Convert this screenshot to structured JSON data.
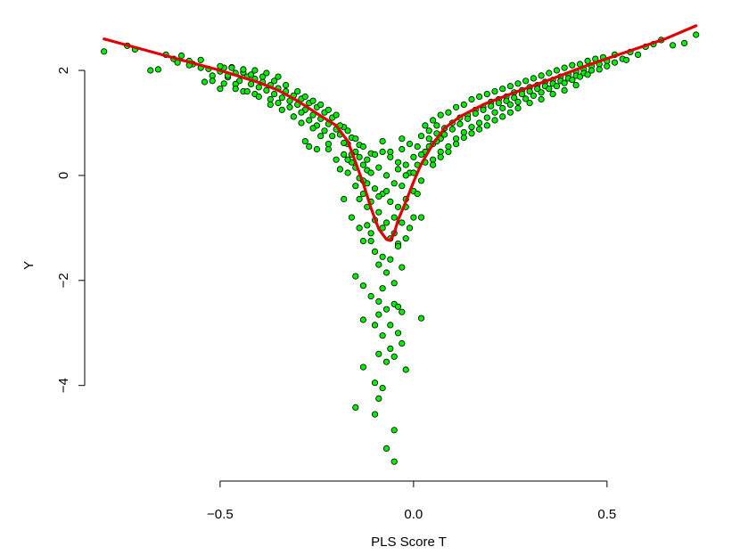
{
  "chart_data": {
    "type": "scatter",
    "xlabel": "PLS Score T",
    "ylabel": "Y",
    "xlim": [
      -0.82,
      0.74
    ],
    "ylim": [
      -5.6,
      2.9
    ],
    "x_ticks": [
      -0.5,
      0.0,
      0.5
    ],
    "x_tick_labels": [
      "−0.5",
      "0.0",
      "0.5"
    ],
    "y_ticks": [
      -4,
      -2,
      0,
      2
    ],
    "y_tick_labels": [
      "−4",
      "−2",
      "0",
      "2"
    ],
    "grid": false,
    "colors": {
      "points": "#00ee00",
      "point_border": "#000000",
      "fit": "#e00000"
    },
    "points": [
      [
        -0.8,
        2.36
      ],
      [
        -0.74,
        2.47
      ],
      [
        -0.72,
        2.4
      ],
      [
        -0.64,
        2.3
      ],
      [
        -0.62,
        2.22
      ],
      [
        -0.6,
        2.28
      ],
      [
        -0.58,
        2.18
      ],
      [
        -0.57,
        2.12
      ],
      [
        -0.55,
        2.2
      ],
      [
        -0.53,
        2.03
      ],
      [
        -0.5,
        1.98
      ],
      [
        -0.49,
        2.05
      ],
      [
        -0.48,
        1.87
      ],
      [
        -0.47,
        2.06
      ],
      [
        -0.46,
        1.95
      ],
      [
        -0.45,
        1.8
      ],
      [
        -0.44,
        1.96
      ],
      [
        -0.43,
        1.88
      ],
      [
        -0.42,
        1.74
      ],
      [
        -0.41,
        1.84
      ],
      [
        -0.4,
        1.68
      ],
      [
        -0.39,
        1.78
      ],
      [
        -0.38,
        1.62
      ],
      [
        -0.37,
        1.72
      ],
      [
        -0.36,
        1.55
      ],
      [
        -0.35,
        1.66
      ],
      [
        -0.34,
        1.48
      ],
      [
        -0.33,
        1.6
      ],
      [
        -0.32,
        1.42
      ],
      [
        -0.31,
        1.52
      ],
      [
        -0.3,
        1.35
      ],
      [
        -0.29,
        1.46
      ],
      [
        -0.28,
        1.25
      ],
      [
        -0.27,
        1.38
      ],
      [
        -0.26,
        1.15
      ],
      [
        -0.25,
        1.3
      ],
      [
        -0.24,
        1.08
      ],
      [
        -0.23,
        1.2
      ],
      [
        -0.22,
        0.98
      ],
      [
        -0.21,
        1.1
      ],
      [
        -0.2,
        0.88
      ],
      [
        -0.19,
        0.78
      ],
      [
        -0.18,
        0.92
      ],
      [
        -0.17,
        0.6
      ],
      [
        -0.16,
        0.72
      ],
      [
        -0.15,
        0.45
      ],
      [
        -0.14,
        0.58
      ],
      [
        -0.13,
        0.2
      ],
      [
        -0.5,
        1.65
      ],
      [
        -0.48,
        1.9
      ],
      [
        -0.46,
        1.74
      ],
      [
        -0.44,
        1.6
      ],
      [
        -0.42,
        1.92
      ],
      [
        -0.41,
        1.55
      ],
      [
        -0.39,
        1.88
      ],
      [
        -0.37,
        1.45
      ],
      [
        -0.36,
        1.8
      ],
      [
        -0.35,
        1.38
      ],
      [
        -0.33,
        1.72
      ],
      [
        -0.32,
        1.3
      ],
      [
        -0.3,
        1.6
      ],
      [
        -0.29,
        1.2
      ],
      [
        -0.28,
        1.5
      ],
      [
        -0.27,
        1.05
      ],
      [
        -0.26,
        1.42
      ],
      [
        -0.25,
        0.95
      ],
      [
        -0.24,
        1.35
      ],
      [
        -0.23,
        0.85
      ],
      [
        -0.22,
        1.25
      ],
      [
        -0.21,
        0.75
      ],
      [
        -0.2,
        1.15
      ],
      [
        -0.19,
        0.95
      ],
      [
        -0.18,
        0.62
      ],
      [
        -0.17,
        0.85
      ],
      [
        -0.16,
        0.4
      ],
      [
        -0.15,
        0.7
      ],
      [
        -0.14,
        0.35
      ],
      [
        -0.13,
        0.55
      ],
      [
        -0.12,
        0.1
      ],
      [
        -0.11,
        0.42
      ],
      [
        -0.28,
        0.65
      ],
      [
        -0.27,
        0.55
      ],
      [
        -0.25,
        0.5
      ],
      [
        -0.22,
        0.6
      ],
      [
        -0.2,
        0.3
      ],
      [
        -0.19,
        0.12
      ],
      [
        -0.18,
        0.4
      ],
      [
        -0.17,
        0.05
      ],
      [
        -0.16,
        0.25
      ],
      [
        -0.15,
        -0.2
      ],
      [
        -0.14,
        -0.05
      ],
      [
        -0.13,
        -0.35
      ],
      [
        -0.12,
        -0.15
      ],
      [
        -0.11,
        -0.5
      ],
      [
        -0.1,
        -0.25
      ],
      [
        -0.09,
        -0.7
      ],
      [
        -0.08,
        -0.35
      ],
      [
        -0.07,
        -0.9
      ],
      [
        -0.06,
        -0.5
      ],
      [
        -0.05,
        -1.1
      ],
      [
        -0.04,
        -0.6
      ],
      [
        -0.03,
        -0.2
      ],
      [
        -0.02,
        -0.45
      ],
      [
        -0.01,
        0.05
      ],
      [
        0.0,
        -0.3
      ],
      [
        0.01,
        0.2
      ],
      [
        0.02,
        -0.1
      ],
      [
        -0.12,
        0.3
      ],
      [
        -0.11,
        0.05
      ],
      [
        -0.1,
        0.4
      ],
      [
        -0.09,
        0.15
      ],
      [
        -0.08,
        0.45
      ],
      [
        -0.07,
        0.0
      ],
      [
        -0.06,
        0.35
      ],
      [
        -0.05,
        -0.15
      ],
      [
        -0.04,
        0.25
      ],
      [
        -0.03,
        0.5
      ],
      [
        -0.02,
        0.2
      ],
      [
        -0.01,
        0.6
      ],
      [
        0.0,
        0.35
      ],
      [
        0.01,
        0.55
      ],
      [
        0.02,
        0.75
      ],
      [
        0.03,
        0.45
      ],
      [
        0.04,
        0.85
      ],
      [
        0.05,
        0.6
      ],
      [
        0.06,
        0.95
      ],
      [
        0.07,
        0.7
      ],
      [
        -0.09,
        -0.4
      ],
      [
        -0.08,
        -1.0
      ],
      [
        -0.07,
        -0.3
      ],
      [
        -0.06,
        -1.2
      ],
      [
        -0.05,
        -0.8
      ],
      [
        -0.04,
        -1.3
      ],
      [
        -0.03,
        -0.9
      ],
      [
        -0.02,
        -0.6
      ],
      [
        -0.1,
        -0.85
      ],
      [
        -0.11,
        -1.1
      ],
      [
        -0.12,
        -0.6
      ],
      [
        -0.14,
        -0.45
      ],
      [
        -0.13,
        -1.25
      ],
      [
        -0.1,
        -1.45
      ],
      [
        -0.09,
        -1.7
      ],
      [
        -0.08,
        -1.55
      ],
      [
        -0.07,
        -1.85
      ],
      [
        -0.06,
        -1.6
      ],
      [
        -0.05,
        -2.05
      ],
      [
        -0.04,
        -1.35
      ],
      [
        -0.03,
        -1.75
      ],
      [
        -0.02,
        -1.2
      ],
      [
        -0.01,
        -1.0
      ],
      [
        0.0,
        -0.8
      ],
      [
        0.02,
        -0.8
      ],
      [
        -0.15,
        -1.92
      ],
      [
        -0.13,
        -2.1
      ],
      [
        -0.11,
        -2.3
      ],
      [
        -0.09,
        -2.4
      ],
      [
        -0.08,
        -2.15
      ],
      [
        -0.07,
        -2.55
      ],
      [
        -0.06,
        -2.85
      ],
      [
        -0.05,
        -2.45
      ],
      [
        -0.04,
        -2.5
      ],
      [
        -0.03,
        -2.6
      ],
      [
        0.02,
        -2.72
      ],
      [
        -0.13,
        -2.75
      ],
      [
        -0.09,
        -2.65
      ],
      [
        -0.1,
        -2.85
      ],
      [
        -0.08,
        -3.05
      ],
      [
        -0.06,
        -3.3
      ],
      [
        -0.04,
        -3.0
      ],
      [
        -0.03,
        -3.2
      ],
      [
        -0.09,
        -3.4
      ],
      [
        -0.07,
        -3.55
      ],
      [
        -0.05,
        -3.45
      ],
      [
        -0.13,
        -3.65
      ],
      [
        -0.02,
        -3.7
      ],
      [
        -0.1,
        -3.95
      ],
      [
        -0.08,
        -4.05
      ],
      [
        -0.09,
        -4.25
      ],
      [
        -0.15,
        -4.42
      ],
      [
        -0.1,
        -4.55
      ],
      [
        -0.05,
        -4.85
      ],
      [
        -0.07,
        -5.2
      ],
      [
        -0.05,
        -5.45
      ],
      [
        0.03,
        0.95
      ],
      [
        0.04,
        0.7
      ],
      [
        0.05,
        1.05
      ],
      [
        0.06,
        0.8
      ],
      [
        0.07,
        1.15
      ],
      [
        0.08,
        0.9
      ],
      [
        0.09,
        1.2
      ],
      [
        0.1,
        1.0
      ],
      [
        0.11,
        1.3
      ],
      [
        0.12,
        1.1
      ],
      [
        0.13,
        1.35
      ],
      [
        0.14,
        1.15
      ],
      [
        0.15,
        1.45
      ],
      [
        0.16,
        1.25
      ],
      [
        0.17,
        1.5
      ],
      [
        0.18,
        1.3
      ],
      [
        0.19,
        1.55
      ],
      [
        0.2,
        1.4
      ],
      [
        0.21,
        1.6
      ],
      [
        0.22,
        1.45
      ],
      [
        0.23,
        1.65
      ],
      [
        0.24,
        1.5
      ],
      [
        0.25,
        1.7
      ],
      [
        0.26,
        1.58
      ],
      [
        0.27,
        1.75
      ],
      [
        0.28,
        1.62
      ],
      [
        0.29,
        1.8
      ],
      [
        0.3,
        1.68
      ],
      [
        0.31,
        1.85
      ],
      [
        0.32,
        1.72
      ],
      [
        0.33,
        1.9
      ],
      [
        0.34,
        1.78
      ],
      [
        0.35,
        1.95
      ],
      [
        0.36,
        1.82
      ],
      [
        0.37,
        2.0
      ],
      [
        0.38,
        1.88
      ],
      [
        0.39,
        2.05
      ],
      [
        0.4,
        1.92
      ],
      [
        0.41,
        2.1
      ],
      [
        0.42,
        1.98
      ],
      [
        0.43,
        2.12
      ],
      [
        0.44,
        2.02
      ],
      [
        0.45,
        2.18
      ],
      [
        0.46,
        2.08
      ],
      [
        0.47,
        2.22
      ],
      [
        0.48,
        2.12
      ],
      [
        0.49,
        2.25
      ],
      [
        0.5,
        2.18
      ],
      [
        0.52,
        2.3
      ],
      [
        0.54,
        2.22
      ],
      [
        0.56,
        2.35
      ],
      [
        0.58,
        2.3
      ],
      [
        0.6,
        2.45
      ],
      [
        0.62,
        2.5
      ],
      [
        0.64,
        2.58
      ],
      [
        0.67,
        2.48
      ],
      [
        0.7,
        2.52
      ],
      [
        0.73,
        2.68
      ],
      [
        0.02,
        0.4
      ],
      [
        0.03,
        0.25
      ],
      [
        0.04,
        0.55
      ],
      [
        0.05,
        0.3
      ],
      [
        0.06,
        0.65
      ],
      [
        0.07,
        0.45
      ],
      [
        0.08,
        0.78
      ],
      [
        0.09,
        0.55
      ],
      [
        0.1,
        0.88
      ],
      [
        0.11,
        0.7
      ],
      [
        0.12,
        0.98
      ],
      [
        0.13,
        0.82
      ],
      [
        0.14,
        1.08
      ],
      [
        0.15,
        0.92
      ],
      [
        0.16,
        1.18
      ],
      [
        0.17,
        1.0
      ],
      [
        0.18,
        1.25
      ],
      [
        0.19,
        1.1
      ],
      [
        0.2,
        1.32
      ],
      [
        0.21,
        1.2
      ],
      [
        0.22,
        1.38
      ],
      [
        0.23,
        1.28
      ],
      [
        0.24,
        1.42
      ],
      [
        0.25,
        1.35
      ],
      [
        0.26,
        1.48
      ],
      [
        0.27,
        1.4
      ],
      [
        0.28,
        1.55
      ],
      [
        0.29,
        1.46
      ],
      [
        0.3,
        1.6
      ],
      [
        0.31,
        1.52
      ],
      [
        0.32,
        1.65
      ],
      [
        0.33,
        1.58
      ],
      [
        0.34,
        1.7
      ],
      [
        0.35,
        1.65
      ],
      [
        0.36,
        1.75
      ],
      [
        0.37,
        1.7
      ],
      [
        0.38,
        1.8
      ],
      [
        0.39,
        1.76
      ],
      [
        0.4,
        1.85
      ],
      [
        0.41,
        1.82
      ],
      [
        0.42,
        1.9
      ],
      [
        0.43,
        1.88
      ],
      [
        0.44,
        1.95
      ],
      [
        0.45,
        1.92
      ],
      [
        0.46,
        2.0
      ],
      [
        0.48,
        2.02
      ],
      [
        0.5,
        2.08
      ],
      [
        0.52,
        2.15
      ],
      [
        0.55,
        2.2
      ],
      [
        0.05,
        0.2
      ],
      [
        0.07,
        0.35
      ],
      [
        0.09,
        0.45
      ],
      [
        0.11,
        0.6
      ],
      [
        0.13,
        0.72
      ],
      [
        0.15,
        0.8
      ],
      [
        0.17,
        0.88
      ],
      [
        0.19,
        0.95
      ],
      [
        0.21,
        1.05
      ],
      [
        0.23,
        1.12
      ],
      [
        0.25,
        1.2
      ],
      [
        0.27,
        1.28
      ],
      [
        0.3,
        1.38
      ],
      [
        0.33,
        1.45
      ],
      [
        0.36,
        1.55
      ],
      [
        0.39,
        1.62
      ],
      [
        0.42,
        1.72
      ],
      [
        -0.22,
        0.5
      ],
      [
        -0.24,
        0.75
      ],
      [
        -0.26,
        0.9
      ],
      [
        -0.29,
        1.0
      ],
      [
        -0.31,
        1.12
      ],
      [
        -0.34,
        1.25
      ],
      [
        -0.37,
        1.35
      ],
      [
        -0.4,
        1.5
      ],
      [
        -0.43,
        1.6
      ],
      [
        -0.46,
        1.65
      ],
      [
        -0.49,
        1.75
      ],
      [
        -0.52,
        1.9
      ],
      [
        -0.55,
        2.05
      ],
      [
        -0.58,
        2.1
      ],
      [
        -0.61,
        2.15
      ],
      [
        -0.68,
        2.0
      ],
      [
        -0.66,
        2.02
      ],
      [
        -0.35,
        1.88
      ],
      [
        -0.38,
        1.95
      ],
      [
        -0.41,
        2.0
      ],
      [
        -0.44,
        2.02
      ],
      [
        -0.47,
        2.05
      ],
      [
        -0.5,
        2.08
      ],
      [
        -0.52,
        1.8
      ],
      [
        -0.54,
        1.78
      ],
      [
        -0.18,
        -0.45
      ],
      [
        -0.16,
        -0.8
      ],
      [
        -0.14,
        -1.0
      ],
      [
        -0.12,
        -0.95
      ],
      [
        -0.11,
        -1.25
      ],
      [
        -0.13,
        -0.1
      ],
      [
        -0.02,
        0.0
      ],
      [
        0.0,
        0.05
      ],
      [
        0.01,
        -0.35
      ],
      [
        -0.04,
        0.12
      ],
      [
        -0.06,
        0.45
      ],
      [
        -0.08,
        0.65
      ],
      [
        -0.03,
        0.7
      ],
      [
        -0.15,
        0.15
      ],
      [
        -0.17,
        0.3
      ]
    ],
    "fit_line": [
      [
        -0.8,
        2.6
      ],
      [
        -0.7,
        2.4
      ],
      [
        -0.6,
        2.2
      ],
      [
        -0.5,
        2.0
      ],
      [
        -0.4,
        1.77
      ],
      [
        -0.35,
        1.62
      ],
      [
        -0.3,
        1.42
      ],
      [
        -0.25,
        1.18
      ],
      [
        -0.2,
        0.95
      ],
      [
        -0.17,
        0.65
      ],
      [
        -0.15,
        0.25
      ],
      [
        -0.13,
        -0.15
      ],
      [
        -0.11,
        -0.62
      ],
      [
        -0.09,
        -1.02
      ],
      [
        -0.07,
        -1.22
      ],
      [
        -0.06,
        -1.24
      ],
      [
        -0.05,
        -1.1
      ],
      [
        -0.04,
        -0.85
      ],
      [
        -0.02,
        -0.5
      ],
      [
        0.0,
        -0.12
      ],
      [
        0.02,
        0.22
      ],
      [
        0.05,
        0.6
      ],
      [
        0.08,
        0.9
      ],
      [
        0.12,
        1.12
      ],
      [
        0.18,
        1.35
      ],
      [
        0.25,
        1.55
      ],
      [
        0.35,
        1.82
      ],
      [
        0.45,
        2.1
      ],
      [
        0.55,
        2.35
      ],
      [
        0.65,
        2.6
      ],
      [
        0.73,
        2.85
      ]
    ]
  }
}
